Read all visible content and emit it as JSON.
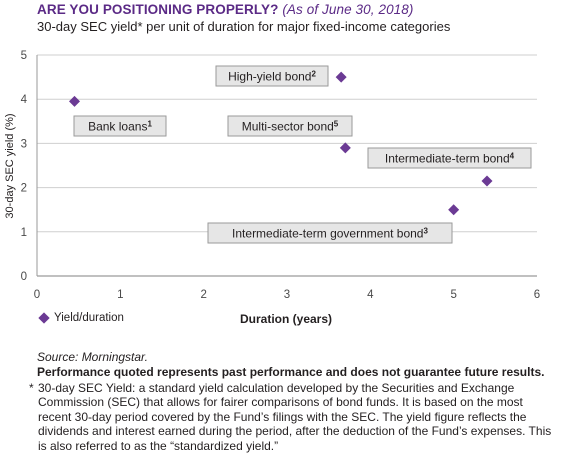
{
  "header": {
    "title_main": "ARE YOU POSITIONING PROPERLY?",
    "title_asof": "(As of June 30, 2018)",
    "subtitle": "30-day SEC yield* per unit of duration for major fixed-income categories"
  },
  "colors": {
    "accent": "#5b2a86",
    "marker": "#6b3a94",
    "annotation_fill": "#e6e6e6",
    "annotation_border": "#9a9a9a",
    "gridline": "#cfcfcf"
  },
  "chart_data": {
    "type": "scatter",
    "title": "30-day SEC yield* per unit of duration for major fixed-income categories",
    "xlabel": "Duration (years)",
    "ylabel": "30-day SEC yield (%)",
    "xlim": [
      0,
      6
    ],
    "ylim": [
      0,
      5
    ],
    "x_ticks": [
      "0",
      "1",
      "2",
      "3",
      "4",
      "5",
      "6"
    ],
    "y_ticks": [
      "0",
      "1",
      "2",
      "3",
      "4",
      "5"
    ],
    "grid": "horizontal",
    "legend": "bottom-left",
    "series": [
      {
        "name": "Yield/duration",
        "points": [
          {
            "label": "Bank loans",
            "footnote": "1",
            "x": 0.45,
            "y": 3.95
          },
          {
            "label": "High-yield bond",
            "footnote": "2",
            "x": 3.65,
            "y": 4.5
          },
          {
            "label": "Intermediate-term government bond",
            "footnote": "3",
            "x": 5.0,
            "y": 1.5
          },
          {
            "label": "Intermediate-term bond",
            "footnote": "4",
            "x": 5.4,
            "y": 2.15
          },
          {
            "label": "Multi-sector bond",
            "footnote": "5",
            "x": 3.7,
            "y": 2.9
          }
        ]
      }
    ]
  },
  "legend": {
    "item": "Yield/duration"
  },
  "notes": {
    "source": "Source: Morningstar.",
    "performance": "Performance quoted represents past performance and does not guarantee future results.",
    "footnote_mark": "*",
    "footnote_text": "30-day SEC Yield: a standard yield calculation developed by the Securities and Exchange Commission (SEC) that allows for fairer comparisons of bond funds. It is based on the most recent 30-day period covered by the Fund’s filings with the SEC. The yield figure reflects the dividends and interest earned during the period, after the deduction of the Fund’s expenses. This is also referred to as the “standardized yield.”"
  }
}
